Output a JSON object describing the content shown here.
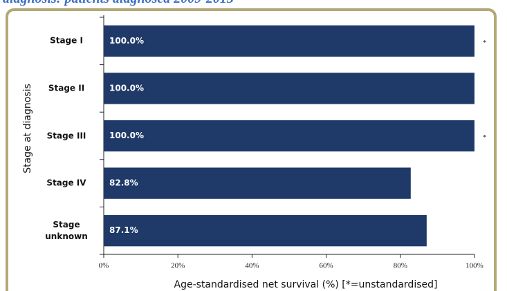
{
  "chart_data": {
    "type": "hbar",
    "title": "diagnosis: patients diagnosed 2009-2013",
    "x_label": "Age-standardised net survival (%) [*=unstandardised]",
    "y_label": "Stage at diagnosis",
    "categories": [
      "Stage I",
      "Stage II",
      "Stage III",
      "Stage IV",
      "Stage unknown"
    ],
    "values": [
      100.0,
      100.0,
      100.0,
      82.8,
      87.1
    ],
    "value_labels": [
      "100.0%",
      "100.0%",
      "100.0%",
      "82.8%",
      "87.1%"
    ],
    "value_notes": [
      "*",
      null,
      "*",
      null,
      null
    ],
    "color": "#1f3a68",
    "xlim": [
      0,
      100
    ],
    "xticks": [
      {
        "value": 0,
        "label": "0%"
      },
      {
        "value": 20,
        "label": "20%"
      },
      {
        "value": 40,
        "label": "40%"
      },
      {
        "value": 60,
        "label": "60%"
      },
      {
        "value": 80,
        "label": "80%"
      },
      {
        "value": 100,
        "label": "100%"
      }
    ],
    "grid": false
  }
}
